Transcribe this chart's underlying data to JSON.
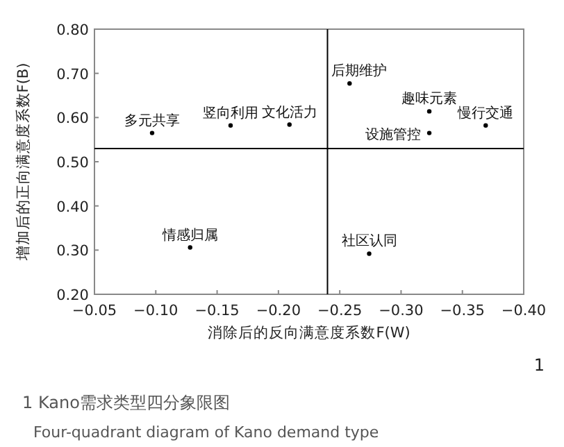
{
  "chart_data": {
    "type": "scatter",
    "title": "1 Kano需求类型四分象限图",
    "subtitle": "Four-quadrant diagram of Kano demand type",
    "xlabel": "消除后的反向满意度系数F(W)",
    "ylabel": "增加后的正向满意度系数F(B)",
    "x": [
      -0.097,
      -0.161,
      -0.209,
      -0.258,
      -0.323,
      -0.323,
      -0.369,
      -0.128,
      -0.274
    ],
    "series": [
      {
        "color": "#000000",
        "values": [
          0.565,
          0.582,
          0.584,
          0.677,
          0.614,
          0.565,
          0.582,
          0.306,
          0.292
        ]
      }
    ],
    "xlim": [
      -0.05,
      -0.4
    ],
    "xticks": [
      {
        "value": -0.05,
        "label": "−0.05"
      },
      {
        "value": -0.1,
        "label": "−0.10"
      },
      {
        "value": -0.15,
        "label": "−0.15"
      },
      {
        "value": -0.2,
        "label": "−0.20"
      },
      {
        "value": -0.25,
        "label": "−0.25"
      },
      {
        "value": -0.3,
        "label": "−0.30"
      },
      {
        "value": -0.35,
        "label": "−0.35"
      },
      {
        "value": -0.4,
        "label": "−0.40"
      }
    ],
    "ylim": [
      0.2,
      0.8
    ],
    "yticks": [
      {
        "value": 0.2,
        "label": "0.20"
      },
      {
        "value": 0.3,
        "label": "0.30"
      },
      {
        "value": 0.4,
        "label": "0.40"
      },
      {
        "value": 0.5,
        "label": "0.50"
      },
      {
        "value": 0.6,
        "label": "0.60"
      },
      {
        "value": 0.7,
        "label": "0.70"
      },
      {
        "value": 0.8,
        "label": "0.80"
      }
    ],
    "ref_lines": [
      {
        "axis": "x",
        "value": -0.24,
        "color": "#000000"
      },
      {
        "axis": "y",
        "value": 0.53,
        "color": "#000000"
      }
    ],
    "marker": "circle",
    "annotations": [
      {
        "text": "多元共享",
        "x": -0.097,
        "y": 0.565
      },
      {
        "text": "竖向利用",
        "x": -0.161,
        "y": 0.582
      },
      {
        "text": "文化活力",
        "x": -0.209,
        "y": 0.584
      },
      {
        "text": "后期维护",
        "x": -0.258,
        "y": 0.677
      },
      {
        "text": "趣味元素",
        "x": -0.323,
        "y": 0.614
      },
      {
        "text": "设施管控",
        "x": -0.323,
        "y": 0.565
      },
      {
        "text": "慢行交通",
        "x": -0.369,
        "y": 0.582
      },
      {
        "text": "情感归属",
        "x": -0.128,
        "y": 0.306
      },
      {
        "text": "社区认同",
        "x": -0.274,
        "y": 0.292
      },
      "1"
    ]
  }
}
